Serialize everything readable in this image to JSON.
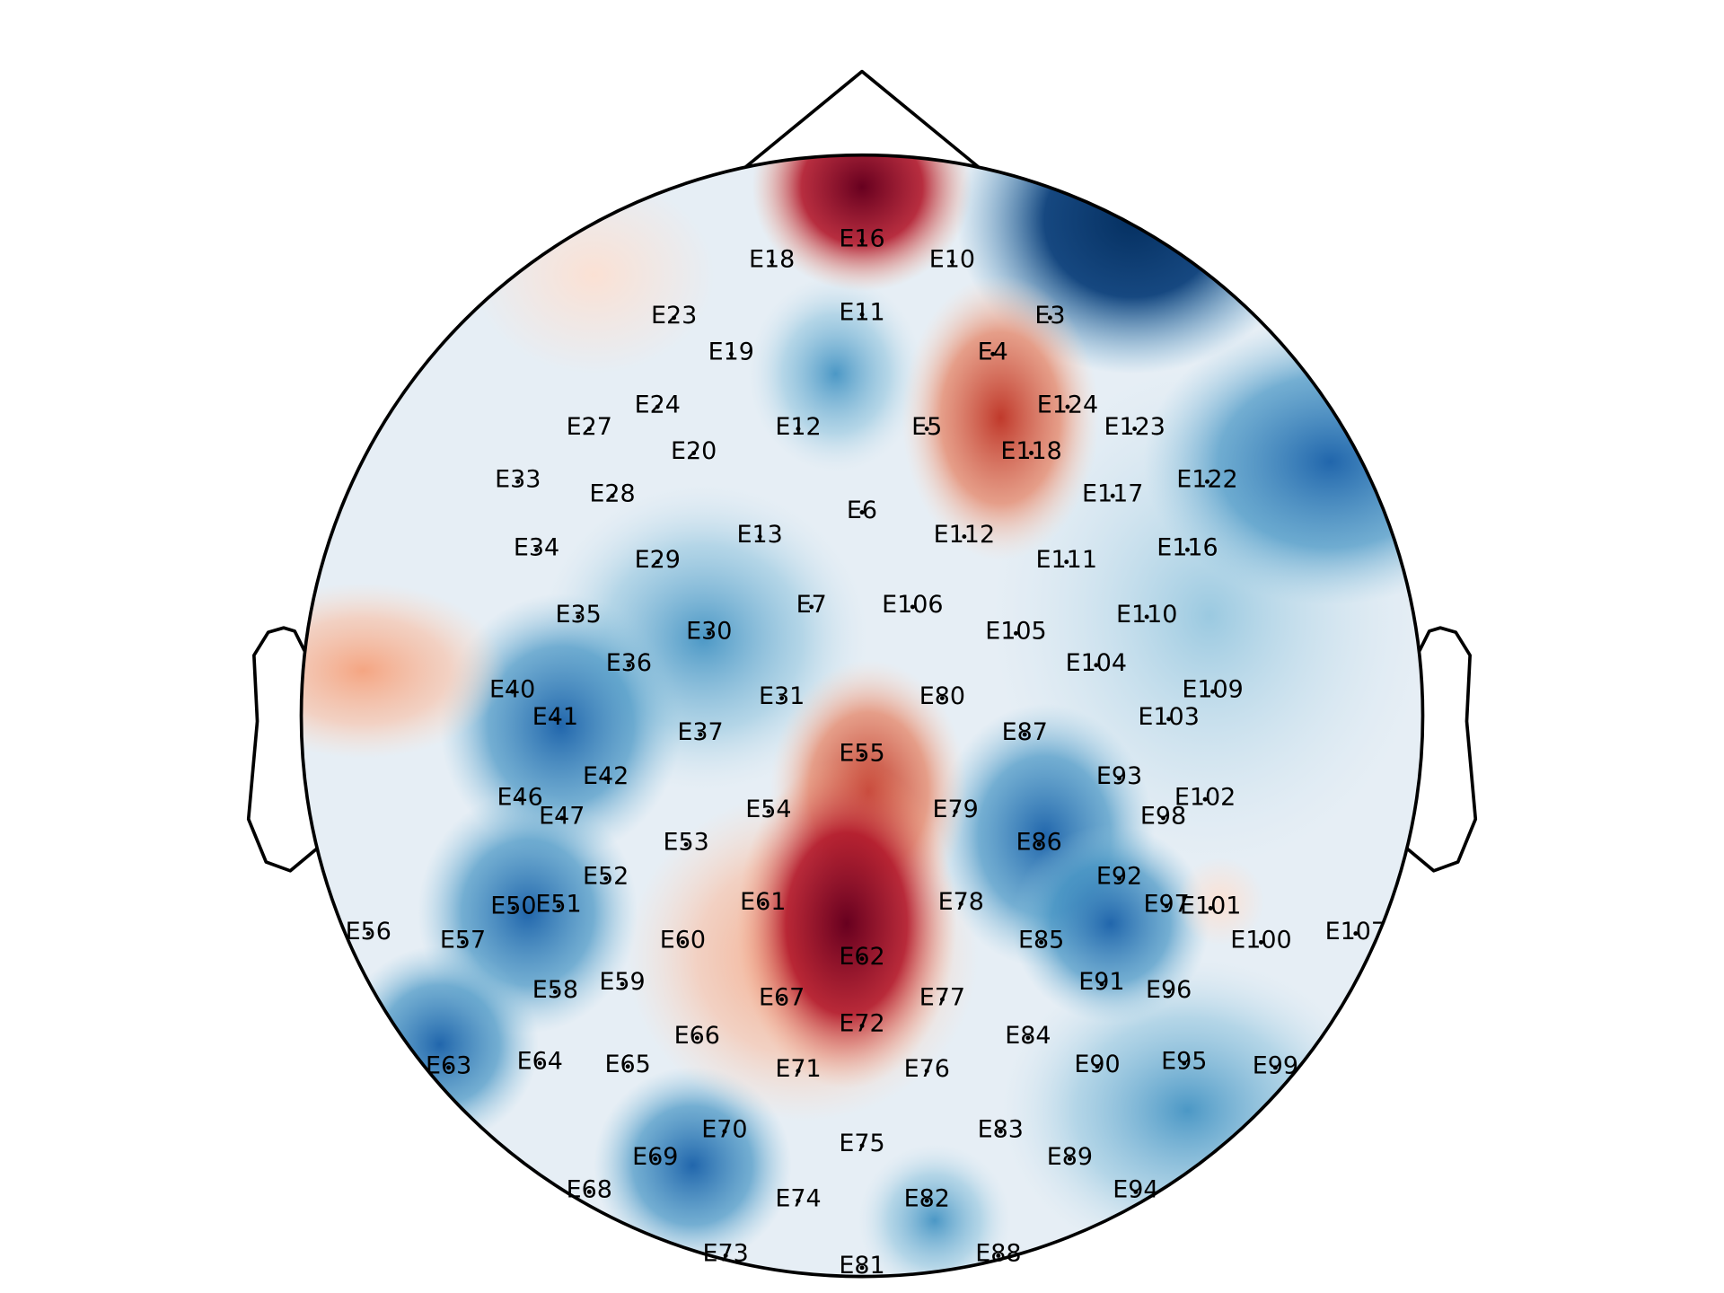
{
  "chart_data": {
    "type": "topomap",
    "channels": [
      "E16",
      "E18",
      "E10",
      "E11",
      "E23",
      "E3",
      "E19",
      "E4",
      "E24",
      "E124",
      "E27",
      "E12",
      "E5",
      "E123",
      "E20",
      "E118",
      "E33",
      "E122",
      "E28",
      "E117",
      "E6",
      "E13",
      "E112",
      "E34",
      "E116",
      "E29",
      "E111",
      "E7",
      "E106",
      "E35",
      "E110",
      "E30",
      "E105",
      "E36",
      "E104",
      "E40",
      "E109",
      "E31",
      "E80",
      "E41",
      "E103",
      "E37",
      "E87",
      "E55",
      "E42",
      "E93",
      "E46",
      "E102",
      "E47",
      "E54",
      "E79",
      "E98",
      "E53",
      "E86",
      "E52",
      "E92",
      "E61",
      "E78",
      "E50",
      "E51",
      "E97",
      "E101",
      "E56",
      "E107",
      "E57",
      "E60",
      "E85",
      "E100",
      "E62",
      "E58",
      "E59",
      "E91",
      "E96",
      "E67",
      "E77",
      "E72",
      "E66",
      "E84",
      "E63",
      "E64",
      "E65",
      "E71",
      "E76",
      "E90",
      "E95",
      "E99",
      "E70",
      "E83",
      "E69",
      "E89",
      "E75",
      "E68",
      "E94",
      "E74",
      "E82",
      "E73",
      "E88",
      "E81"
    ]
  }
}
